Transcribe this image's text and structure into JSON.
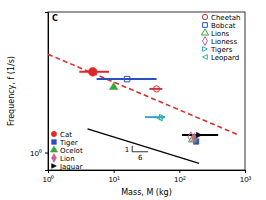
{
  "chart_data": {
    "type": "scatter",
    "log": true,
    "xlim": [
      1,
      1000
    ],
    "ylim": [
      0.8,
      6
    ],
    "xticks": [
      {
        "value": 1,
        "label": "10⁰"
      },
      {
        "value": 10,
        "label": "10¹"
      },
      {
        "value": 100,
        "label": "10²"
      },
      {
        "value": 1000,
        "label": "10³"
      }
    ],
    "yticks": [
      {
        "value": 1,
        "label": "10⁰"
      }
    ],
    "x_label": "Mass, M (kg)",
    "y_label": "Frequency, f (1/s)",
    "annotations": [
      "C",
      "1",
      "6"
    ],
    "series": [
      {
        "name": "Cat",
        "color": "#e3262b",
        "marker": "circle",
        "legend": "lower left",
        "x": [
          4.8
        ],
        "y": [
          2.8
        ],
        "x_low": [
          3
        ],
        "x_high": [
          8.5
        ]
      },
      {
        "name": "Tiger",
        "color": "#2a4fc4",
        "marker": "square",
        "legend": "lower left",
        "x": [
          180
        ],
        "y": [
          1.15
        ]
      },
      {
        "name": "Ocelot",
        "color": "#3aa63a",
        "marker": "triangle",
        "legend": "lower left",
        "x": [
          10
        ],
        "y": [
          2.3
        ]
      },
      {
        "name": "Lion",
        "color": "#c8649a",
        "marker": "diamond",
        "legend": "lower left",
        "x": [
          170
        ],
        "y": [
          1.2
        ]
      },
      {
        "name": "Jaguar",
        "color": "#000000",
        "marker": "triangle-right",
        "legend": "lower left",
        "x": [
          200
        ],
        "y": [
          1.25
        ],
        "x_low": [
          110
        ],
        "x_high": [
          390
        ]
      },
      {
        "name": "Cheetah",
        "color": "#d0353a",
        "marker": "circle-open",
        "legend": "upper right",
        "x": [
          45
        ],
        "y": [
          2.25
        ],
        "x_low": [
          35
        ],
        "x_high": [
          55
        ]
      },
      {
        "name": "Bobcat",
        "color": "#2a4fc4",
        "marker": "square-open",
        "legend": "upper right",
        "x": [
          16
        ],
        "y": [
          2.55
        ],
        "x_low": [
          5.5
        ],
        "x_high": [
          45
        ]
      },
      {
        "name": "Lions",
        "color": "#3aa63a",
        "marker": "triangle-open",
        "legend": "upper right",
        "x": [
          160
        ],
        "y": [
          1.18
        ]
      },
      {
        "name": "Lioness",
        "color": "#c8649a",
        "marker": "diamond-open",
        "legend": "upper right",
        "x": [
          150
        ],
        "y": [
          1.22
        ]
      },
      {
        "name": "Tigers",
        "color": "#2fa8d0",
        "marker": "triangle-right-open",
        "legend": "upper right",
        "x": [
          55
        ],
        "y": [
          1.57
        ],
        "x_low": [
          30
        ],
        "x_high": [
          60
        ]
      },
      {
        "name": "Leopard",
        "color": "#2fb59a",
        "marker": "triangle-left-open",
        "legend": "upper right",
        "x": [
          50
        ],
        "y": [
          1.55
        ]
      },
      {
        "type": "line",
        "color": "#d9302c",
        "line_style": "dashed",
        "x": [
          1,
          800
        ],
        "y": [
          3.5,
          1.25
        ]
      },
      {
        "type": "line",
        "color": "#000000",
        "line_style": "solid",
        "x": [
          4,
          200
        ],
        "y": [
          1.35,
          0.87
        ]
      }
    ]
  }
}
